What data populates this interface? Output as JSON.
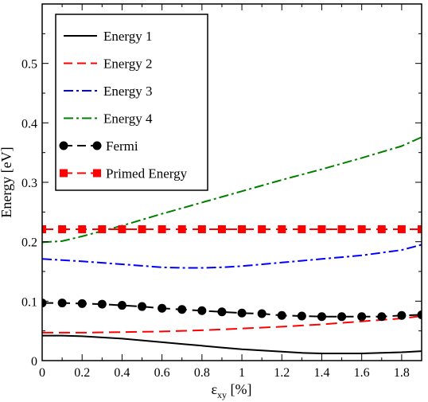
{
  "chart_data": {
    "type": "line",
    "xlabel": "ε",
    "xlabel_sub": "xy",
    "xlabel_unit": " [%]",
    "ylabel": "Energy [eV]",
    "xlim": [
      0,
      1.9
    ],
    "ylim": [
      0,
      0.6
    ],
    "xticks": [
      0,
      0.2,
      0.4,
      0.6,
      0.8,
      1,
      1.2,
      1.4,
      1.6,
      1.8
    ],
    "xtick_labels": [
      "0",
      "0.2",
      "0.4",
      "0.6",
      "0.8",
      "1",
      "1.2",
      "1.4",
      "1.6",
      "1.8"
    ],
    "yticks": [
      0,
      0.1,
      0.2,
      0.3,
      0.4,
      0.5
    ],
    "ytick_labels": [
      "0",
      "0.1",
      "0.2",
      "0.3",
      "0.4",
      "0.5"
    ],
    "grid": false,
    "legend_position": "top-left",
    "series": [
      {
        "name": "Energy 1",
        "color": "#000000",
        "style": "solid",
        "marker": "none",
        "x": [
          0,
          0.1,
          0.2,
          0.3,
          0.4,
          0.5,
          0.6,
          0.7,
          0.8,
          0.9,
          1.0,
          1.1,
          1.2,
          1.3,
          1.4,
          1.5,
          1.6,
          1.7,
          1.8,
          1.9
        ],
        "y": [
          0.042,
          0.042,
          0.041,
          0.039,
          0.037,
          0.034,
          0.031,
          0.028,
          0.025,
          0.022,
          0.019,
          0.017,
          0.015,
          0.013,
          0.012,
          0.012,
          0.012,
          0.013,
          0.014,
          0.016
        ]
      },
      {
        "name": "Energy 2",
        "color": "#ff0000",
        "style": "dashed",
        "marker": "none",
        "x": [
          0,
          0.2,
          0.4,
          0.6,
          0.8,
          1.0,
          1.2,
          1.4,
          1.6,
          1.8,
          1.9
        ],
        "y": [
          0.047,
          0.047,
          0.048,
          0.049,
          0.051,
          0.054,
          0.057,
          0.061,
          0.066,
          0.071,
          0.075
        ]
      },
      {
        "name": "Energy 3",
        "color": "#0000ff",
        "style": "dashdot",
        "marker": "none",
        "x": [
          0,
          0.2,
          0.4,
          0.6,
          0.7,
          0.8,
          0.9,
          1.0,
          1.2,
          1.4,
          1.6,
          1.8,
          1.9
        ],
        "y": [
          0.171,
          0.167,
          0.162,
          0.157,
          0.156,
          0.156,
          0.157,
          0.159,
          0.165,
          0.171,
          0.177,
          0.186,
          0.195
        ]
      },
      {
        "name": "Energy 4",
        "color": "#008000",
        "style": "dashdot",
        "marker": "none",
        "x": [
          0,
          0.1,
          0.2,
          0.3,
          0.4,
          0.6,
          0.8,
          1.0,
          1.2,
          1.4,
          1.6,
          1.8,
          1.9
        ],
        "y": [
          0.199,
          0.201,
          0.209,
          0.218,
          0.227,
          0.247,
          0.266,
          0.285,
          0.304,
          0.322,
          0.341,
          0.361,
          0.376
        ]
      },
      {
        "name": "Fermi",
        "color": "#000000",
        "style": "dashed",
        "marker": "circle",
        "x": [
          0,
          0.1,
          0.2,
          0.3,
          0.4,
          0.5,
          0.6,
          0.7,
          0.8,
          0.9,
          1.0,
          1.1,
          1.2,
          1.3,
          1.4,
          1.5,
          1.6,
          1.7,
          1.8,
          1.9
        ],
        "y": [
          0.097,
          0.097,
          0.096,
          0.095,
          0.093,
          0.091,
          0.088,
          0.086,
          0.084,
          0.082,
          0.08,
          0.079,
          0.076,
          0.075,
          0.074,
          0.074,
          0.074,
          0.074,
          0.076,
          0.077
        ]
      },
      {
        "name": "Primed Energy",
        "color": "#ff0000",
        "style": "dashed",
        "marker": "square",
        "x": [
          0,
          0.1,
          0.2,
          0.3,
          0.4,
          0.5,
          0.6,
          0.7,
          0.8,
          0.9,
          1.0,
          1.1,
          1.2,
          1.3,
          1.4,
          1.5,
          1.6,
          1.7,
          1.8,
          1.9
        ],
        "y": [
          0.221,
          0.221,
          0.221,
          0.221,
          0.221,
          0.221,
          0.221,
          0.221,
          0.221,
          0.221,
          0.221,
          0.221,
          0.221,
          0.221,
          0.221,
          0.221,
          0.221,
          0.221,
          0.221,
          0.221
        ]
      }
    ]
  }
}
